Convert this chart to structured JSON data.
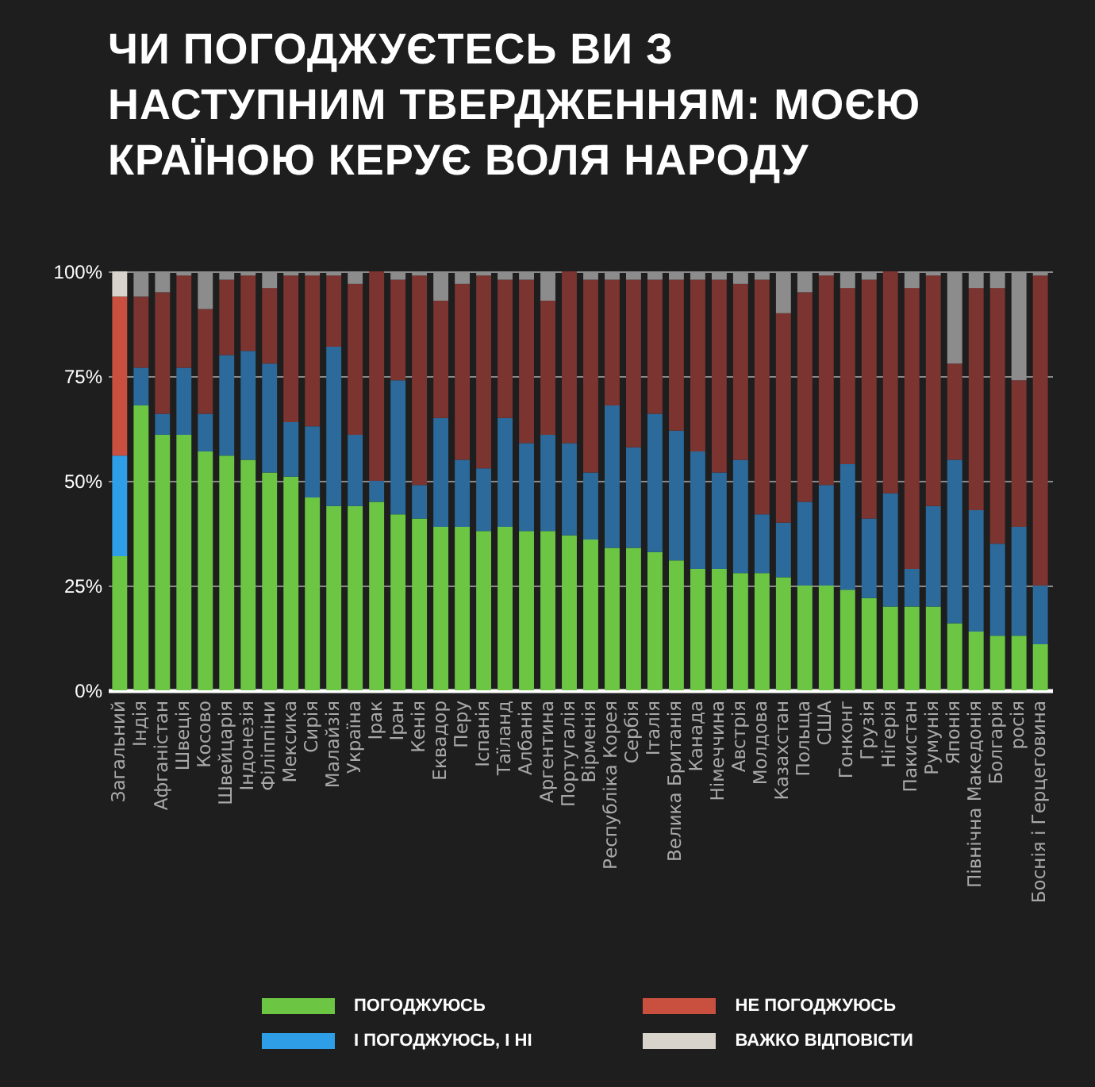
{
  "chart_data": {
    "type": "bar",
    "stacked": true,
    "title": "ЧИ ПОГОДЖУЄТЕСЬ ВИ З НАСТУПНИМ ТВЕРДЖЕННЯМ: МОЄЮ КРАЇНОЮ КЕРУЄ ВОЛЯ НАРОДУ",
    "categories": [
      "Загальний",
      "Індія",
      "Афганістан",
      "Швеція",
      "Косово",
      "Швейцарія",
      "Індонезія",
      "Філіппіни",
      "Мексика",
      "Сирія",
      "Малайзія",
      "Україна",
      "Ірак",
      "Іран",
      "Кенія",
      "Еквадор",
      "Перу",
      "Іспанія",
      "Таїланд",
      "Албанія",
      "Аргентина",
      "Португалія",
      "Вірменія",
      "Республіка Корея",
      "Сербія",
      "Італія",
      "Велика Британія",
      "Канада",
      "Німеччина",
      "Австрія",
      "Молдова",
      "Казахстан",
      "Польща",
      "США",
      "Гонконг",
      "Грузія",
      "Нігерія",
      "Пакистан",
      "Румунія",
      "Японія",
      "Північна Македонія",
      "Болгарія",
      "росія",
      "Боснія і Герцеговина"
    ],
    "series": [
      {
        "name": "ПОГОДЖУЮСЬ",
        "color": "#6cc644",
        "values": [
          32,
          68,
          61,
          61,
          57,
          56,
          55,
          52,
          51,
          46,
          44,
          44,
          45,
          42,
          41,
          39,
          39,
          38,
          39,
          38,
          38,
          37,
          36,
          34,
          34,
          33,
          31,
          29,
          29,
          28,
          28,
          27,
          25,
          25,
          24,
          22,
          20,
          20,
          20,
          16,
          14,
          13,
          13,
          11
        ]
      },
      {
        "name": "І ПОГОДЖУЮСЬ, І НІ",
        "color": "#2e9fe6",
        "colors": [
          "#2e9fe6",
          "#2b6a9a",
          "#2b6a9a",
          "#2b6a9a",
          "#2b6a9a",
          "#2b6a9a",
          "#2b6a9a",
          "#2b6a9a",
          "#2b6a9a",
          "#2b6a9a",
          "#2b6a9a",
          "#2b6a9a",
          "#2b6a9a",
          "#2b6a9a",
          "#2b6a9a",
          "#2b6a9a",
          "#2b6a9a",
          "#2b6a9a",
          "#2b6a9a",
          "#2b6a9a",
          "#2b6a9a",
          "#2b6a9a",
          "#2b6a9a",
          "#2b6a9a",
          "#2b6a9a",
          "#2b6a9a",
          "#2b6a9a",
          "#2b6a9a",
          "#2b6a9a",
          "#2b6a9a",
          "#2b6a9a",
          "#2b6a9a",
          "#2b6a9a",
          "#2b6a9a",
          "#2b6a9a",
          "#2b6a9a",
          "#2b6a9a",
          "#2b6a9a",
          "#2b6a9a",
          "#2b6a9a",
          "#2b6a9a",
          "#2b6a9a",
          "#2b6a9a",
          "#2b6a9a"
        ],
        "values": [
          24,
          9,
          5,
          16,
          9,
          24,
          26,
          26,
          13,
          17,
          38,
          17,
          5,
          32,
          8,
          26,
          16,
          15,
          26,
          21,
          23,
          22,
          16,
          34,
          24,
          33,
          31,
          28,
          23,
          27,
          14,
          13,
          20,
          24,
          30,
          19,
          27,
          9,
          24,
          39,
          29,
          22,
          26,
          14
        ]
      },
      {
        "name": "НЕ ПОГОДЖУЮСЬ",
        "color": "#c9503f",
        "colors": [
          "#c9503f",
          "#7b3430",
          "#7b3430",
          "#7b3430",
          "#7b3430",
          "#7b3430",
          "#7b3430",
          "#7b3430",
          "#7b3430",
          "#7b3430",
          "#7b3430",
          "#7b3430",
          "#7b3430",
          "#7b3430",
          "#7b3430",
          "#7b3430",
          "#7b3430",
          "#7b3430",
          "#7b3430",
          "#7b3430",
          "#7b3430",
          "#7b3430",
          "#7b3430",
          "#7b3430",
          "#7b3430",
          "#7b3430",
          "#7b3430",
          "#7b3430",
          "#7b3430",
          "#7b3430",
          "#7b3430",
          "#7b3430",
          "#7b3430",
          "#7b3430",
          "#7b3430",
          "#7b3430",
          "#7b3430",
          "#7b3430",
          "#7b3430",
          "#7b3430",
          "#7b3430",
          "#7b3430",
          "#7b3430",
          "#7b3430"
        ],
        "values": [
          38,
          17,
          29,
          22,
          25,
          18,
          18,
          18,
          35,
          36,
          17,
          36,
          50,
          24,
          50,
          28,
          42,
          46,
          33,
          39,
          32,
          41,
          46,
          30,
          40,
          32,
          36,
          41,
          46,
          42,
          56,
          50,
          50,
          50,
          42,
          57,
          53,
          67,
          55,
          23,
          53,
          61,
          35,
          74
        ]
      },
      {
        "name": "ВАЖКО ВІДПОВІСТИ",
        "color": "#d8d4cc",
        "colors": [
          "#d8d4cc",
          "#8c8c8c",
          "#8c8c8c",
          "#8c8c8c",
          "#8c8c8c",
          "#8c8c8c",
          "#8c8c8c",
          "#8c8c8c",
          "#8c8c8c",
          "#8c8c8c",
          "#8c8c8c",
          "#8c8c8c",
          "#8c8c8c",
          "#8c8c8c",
          "#8c8c8c",
          "#8c8c8c",
          "#8c8c8c",
          "#8c8c8c",
          "#8c8c8c",
          "#8c8c8c",
          "#8c8c8c",
          "#8c8c8c",
          "#8c8c8c",
          "#8c8c8c",
          "#8c8c8c",
          "#8c8c8c",
          "#8c8c8c",
          "#8c8c8c",
          "#8c8c8c",
          "#8c8c8c",
          "#8c8c8c",
          "#8c8c8c",
          "#8c8c8c",
          "#8c8c8c",
          "#8c8c8c",
          "#8c8c8c",
          "#8c8c8c",
          "#8c8c8c",
          "#8c8c8c",
          "#8c8c8c",
          "#8c8c8c",
          "#8c8c8c",
          "#8c8c8c",
          "#8c8c8c"
        ],
        "values": [
          6,
          6,
          5,
          1,
          9,
          2,
          1,
          4,
          1,
          1,
          1,
          3,
          0,
          2,
          1,
          7,
          3,
          1,
          2,
          2,
          7,
          0,
          2,
          2,
          2,
          2,
          2,
          2,
          2,
          3,
          2,
          10,
          5,
          1,
          4,
          2,
          0,
          4,
          1,
          22,
          4,
          4,
          26,
          1
        ]
      }
    ],
    "ylim": [
      0,
      100
    ],
    "yticks": [
      {
        "value": 0,
        "label": "0%"
      },
      {
        "value": 25,
        "label": "25%"
      },
      {
        "value": 50,
        "label": "50%"
      },
      {
        "value": 75,
        "label": "75%"
      },
      {
        "value": 100,
        "label": "100%"
      }
    ],
    "grid": "y",
    "legend": "bottom"
  }
}
